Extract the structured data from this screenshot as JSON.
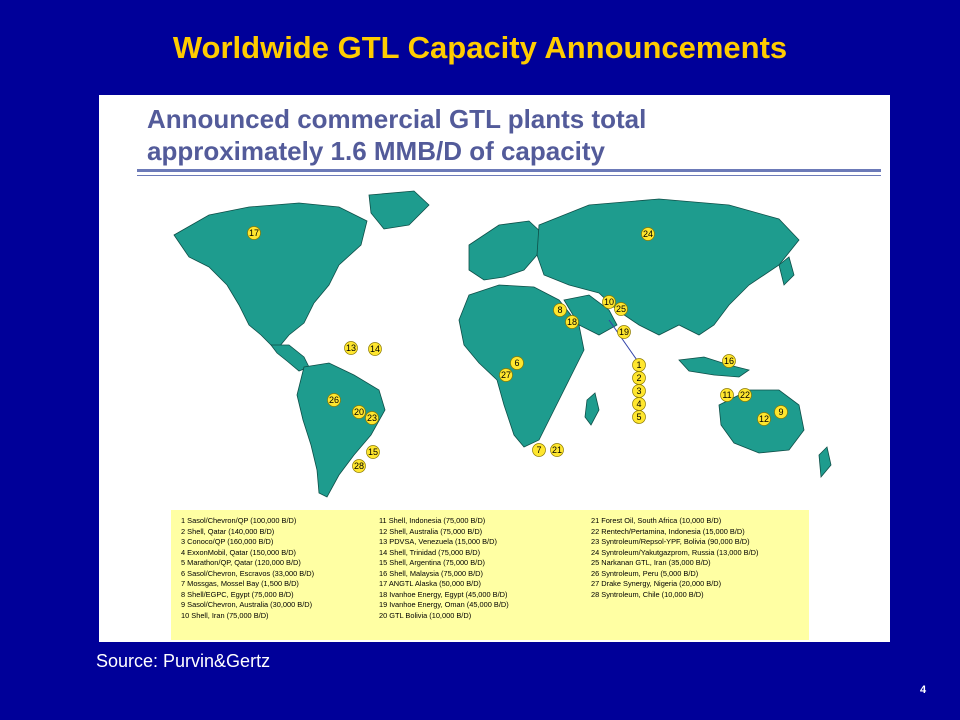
{
  "slide": {
    "title": "Worldwide GTL Capacity Announcements",
    "source": "Source: Purvin&Gertz",
    "page_number": "4"
  },
  "panel": {
    "headline_line1": "Announced commercial GTL plants total",
    "headline_line2": "approximately 1.6 MMB/D of capacity"
  },
  "colors": {
    "background": "#000099",
    "title": "#FFCC00",
    "land": "#1E9C8E",
    "marker": "#FFE62E",
    "legend_bg": "#FFFFA3"
  },
  "markers": [
    {
      "id": "1",
      "label": "1"
    },
    {
      "id": "2",
      "label": "2"
    },
    {
      "id": "3",
      "label": "3"
    },
    {
      "id": "4",
      "label": "4"
    },
    {
      "id": "5",
      "label": "5"
    },
    {
      "id": "6",
      "label": "6"
    },
    {
      "id": "7",
      "label": "7"
    },
    {
      "id": "8",
      "label": "8"
    },
    {
      "id": "9",
      "label": "9"
    },
    {
      "id": "10",
      "label": "10"
    },
    {
      "id": "11",
      "label": "11"
    },
    {
      "id": "12",
      "label": "12"
    },
    {
      "id": "13",
      "label": "13"
    },
    {
      "id": "14",
      "label": "14"
    },
    {
      "id": "15",
      "label": "15"
    },
    {
      "id": "16",
      "label": "16"
    },
    {
      "id": "17",
      "label": "17"
    },
    {
      "id": "18",
      "label": "18"
    },
    {
      "id": "19",
      "label": "19"
    },
    {
      "id": "20",
      "label": "20"
    },
    {
      "id": "21",
      "label": "21"
    },
    {
      "id": "22",
      "label": "22"
    },
    {
      "id": "23",
      "label": "23"
    },
    {
      "id": "24",
      "label": "24"
    },
    {
      "id": "25",
      "label": "25"
    },
    {
      "id": "26",
      "label": "26"
    },
    {
      "id": "27",
      "label": "27"
    },
    {
      "id": "28",
      "label": "28"
    }
  ],
  "legend": {
    "col1": [
      "1  Sasol/Chevron/QP (100,000 B/D)",
      "2  Shell, Qatar (140,000 B/D)",
      "3  Conoco/QP (160,000 B/D)",
      "4  ExxonMobil, Qatar (150,000 B/D)",
      "5  Marathon/QP, Qatar (120,000 B/D)",
      "6  Sasol/Chevron, Escravos (33,000 B/D)",
      "7  Mossgas, Mossel Bay (1,500 B/D)",
      "8  Shell/EGPC, Egypt (75,000 B/D)",
      "9  Sasol/Chevron, Australia (30,000 B/D)",
      "10  Shell, Iran (75,000 B/D)"
    ],
    "col2": [
      "11  Shell, Indonesia (75,000 B/D)",
      "12  Shell, Australia (75,000 B/D)",
      "13  PDVSA, Venezuela (15,000 B/D)",
      "14  Shell, Trinidad (75,000 B/D)",
      "15  Shell, Argentina (75,000 B/D)",
      "16  Shell, Malaysia (75,000 B/D)",
      "17  ANGTL Alaska (50,000 B/D)",
      "18  Ivanhoe Energy, Egypt (45,000 B/D)",
      "19  Ivanhoe Energy, Oman (45,000 B/D)",
      "20  GTL Bolivia (10,000 B/D)"
    ],
    "col3": [
      "21  Forest Oil, South Africa (10,000 B/D)",
      "22  Rentech/Pertamina, Indonesia (15,000 B/D)",
      "23  Syntroleum/Repsol-YPF, Bolivia (90,000 B/D)",
      "24  Syntroleum/Yakutgazprom, Russia (13,000 B/D)",
      "25  Narkanan GTL, Iran (35,000 B/D)",
      "26  Syntroleum, Peru (5,000 B/D)",
      "27  Drake Synergy, Nigeria (20,000 B/D)",
      "28  Syntroleum, Chile (10,000 B/D)"
    ]
  }
}
